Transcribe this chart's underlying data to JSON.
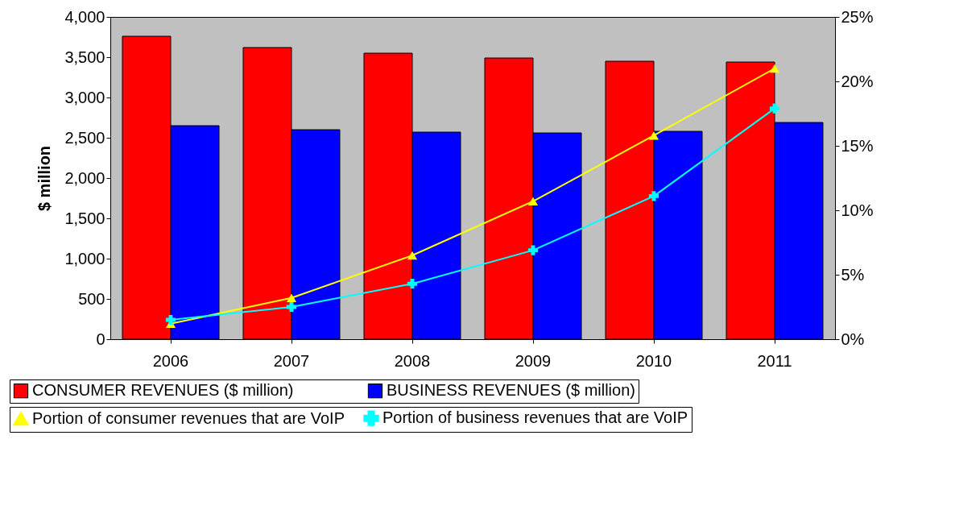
{
  "chart_data": {
    "type": "bar",
    "ylabel": "$ million",
    "categories": [
      "2006",
      "2007",
      "2008",
      "2009",
      "2010",
      "2011"
    ],
    "series": [
      {
        "name": "CONSUMER REVENUES ($ million)",
        "color": "#ff0000",
        "values": [
          3760,
          3620,
          3550,
          3490,
          3450,
          3440
        ]
      },
      {
        "name": "BUSINESS REVENUES ($ million)",
        "color": "#0000ff",
        "values": [
          2650,
          2600,
          2570,
          2560,
          2580,
          2690
        ]
      },
      {
        "name": "Portion of consumer revenues that are VoIP",
        "type": "line",
        "axis": "y2",
        "marker": "triangle",
        "color": "#ffff00",
        "values": [
          1.2,
          3.2,
          6.5,
          10.7,
          15.8,
          21.0
        ]
      },
      {
        "name": "Portion of business revenues that are VoIP",
        "type": "line",
        "axis": "y2",
        "marker": "cross",
        "color": "#00ffff",
        "values": [
          1.5,
          2.5,
          4.3,
          6.9,
          11.1,
          17.9
        ]
      }
    ],
    "ylim": [
      0,
      4000
    ],
    "yticks": [
      0,
      500,
      {
        "value": 1000,
        "label": "1,000"
      },
      {
        "value": 1500,
        "label": "1,500"
      },
      {
        "value": 2000,
        "label": "2,000"
      },
      {
        "value": 2500,
        "label": "2,500"
      },
      {
        "value": 3000,
        "label": "3,000"
      },
      {
        "value": 3500,
        "label": "3,500"
      },
      {
        "value": 4000,
        "label": "4,000"
      }
    ],
    "y2lim": [
      0,
      25
    ],
    "y2ticks": [
      {
        "value": 0,
        "label": "0%"
      },
      {
        "value": 5,
        "label": "5%"
      },
      {
        "value": 10,
        "label": "10%"
      },
      {
        "value": 15,
        "label": "15%"
      },
      {
        "value": 20,
        "label": "20%"
      },
      {
        "value": 25,
        "label": "25%"
      }
    ],
    "grid": false,
    "legend": "bottom"
  }
}
